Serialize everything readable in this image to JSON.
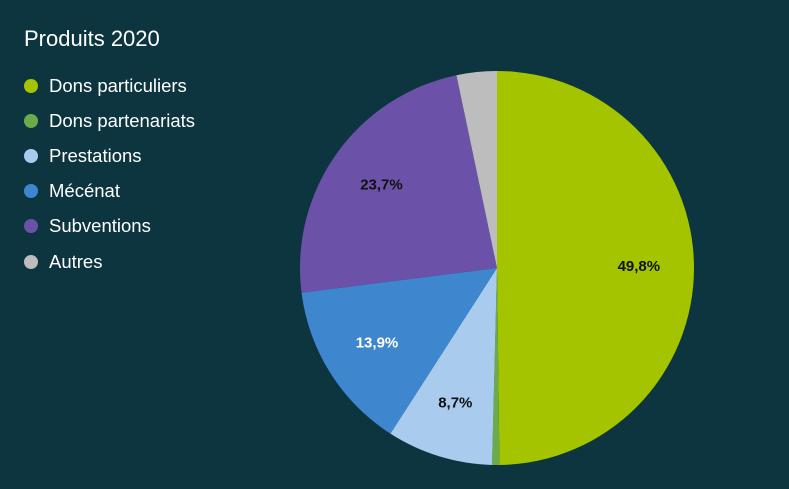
{
  "chart_data": {
    "type": "pie",
    "title": "Produits 2020",
    "legend_position": "left",
    "start": "top, clockwise",
    "slices": [
      {
        "name": "Dons particuliers",
        "value": 49.8,
        "label": "49,8%",
        "color": "#a5c400",
        "label_color": "#111111"
      },
      {
        "name": "Dons partenariats",
        "value": 0.6,
        "label": "",
        "color": "#6bab4c",
        "label_color": "#111111"
      },
      {
        "name": "Prestations",
        "value": 8.7,
        "label": "8,7%",
        "color": "#a9cbee",
        "label_color": "#111111"
      },
      {
        "name": "Mécénat",
        "value": 13.9,
        "label": "13,9%",
        "color": "#3e87cf",
        "label_color": "#ffffff"
      },
      {
        "name": "Subventions",
        "value": 23.7,
        "label": "23,7%",
        "color": "#6b52a8",
        "label_color": "#111111"
      },
      {
        "name": "Autres",
        "value": 3.3,
        "label": "",
        "color": "#bdbdbd",
        "label_color": "#111111"
      }
    ]
  }
}
